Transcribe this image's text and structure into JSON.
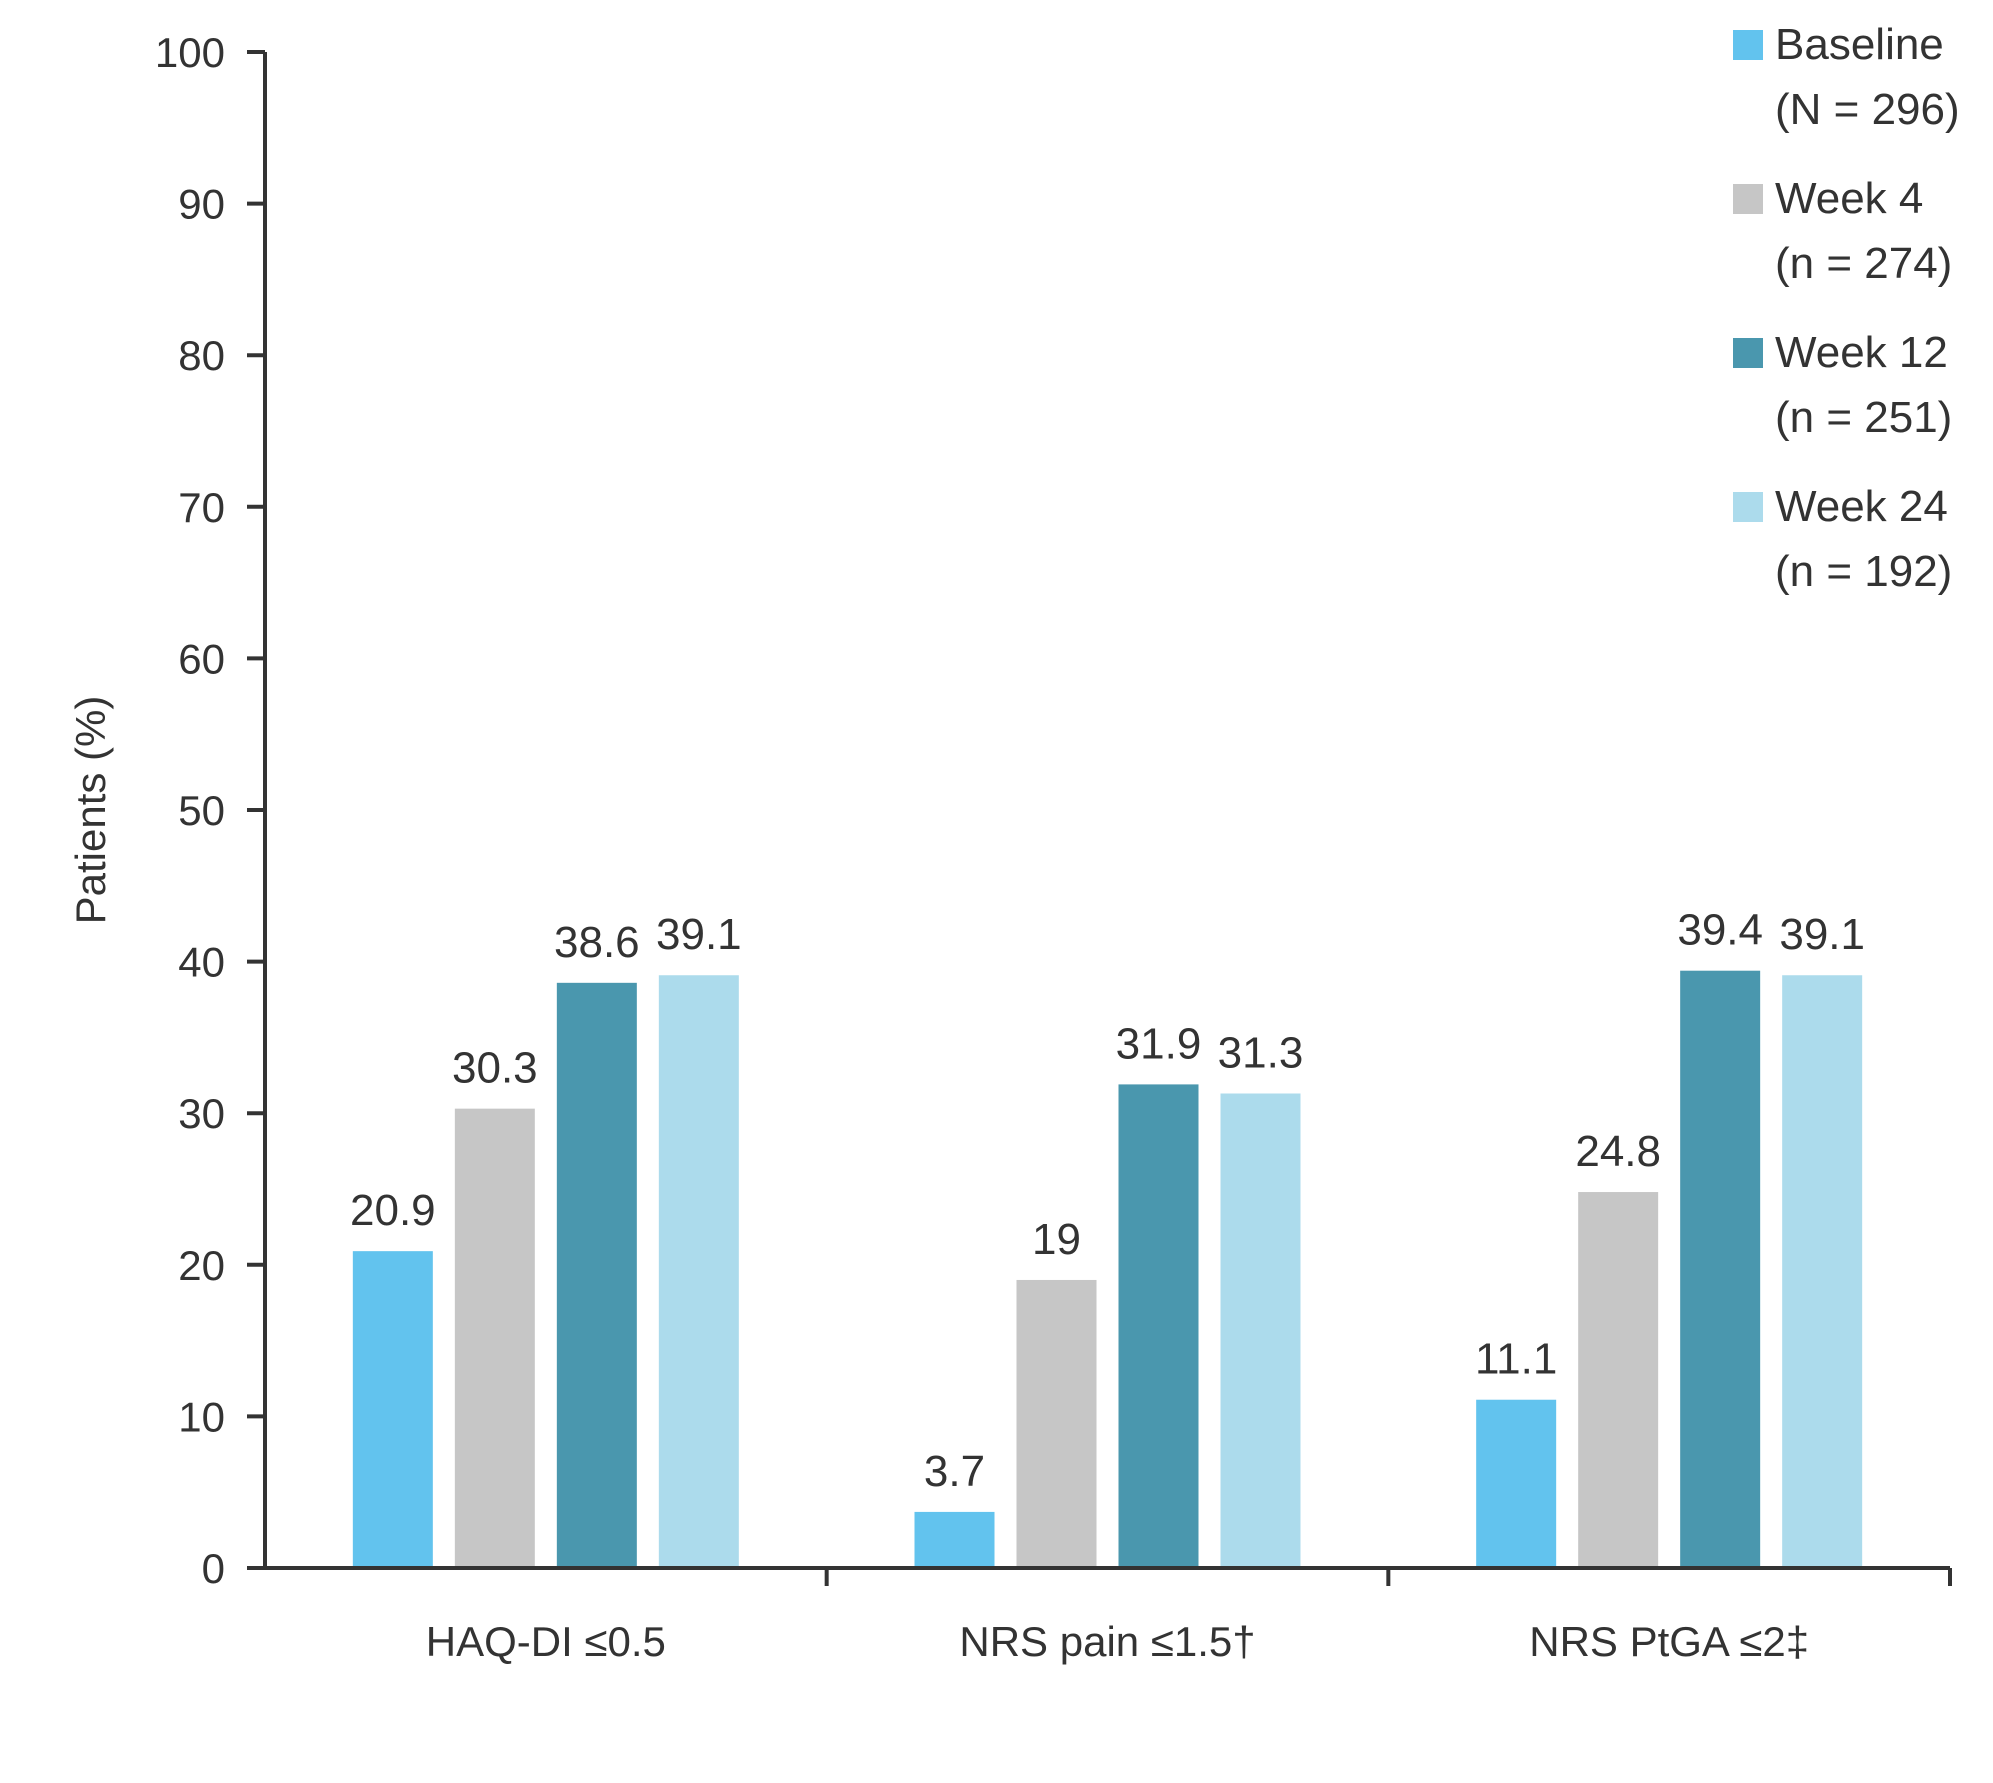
{
  "chart_data": {
    "type": "bar",
    "ylabel": "Patients (%)",
    "xlabel": "",
    "ylim": [
      0,
      100
    ],
    "yticks": [
      0,
      10,
      20,
      30,
      40,
      50,
      60,
      70,
      80,
      90,
      100
    ],
    "categories": [
      "HAQ-DI ≤0.5",
      "NRS pain ≤1.5†",
      "NRS PtGA ≤2‡"
    ],
    "legend_position": "top-right",
    "grid": false,
    "series": [
      {
        "name": "Baseline",
        "name_line2": "(N = 296)",
        "color": "#62c3ee",
        "values": [
          20.9,
          3.7,
          11.1
        ],
        "labels": [
          "20.9",
          "3.7",
          "11.1"
        ]
      },
      {
        "name": "Week 4",
        "name_line2": "(n = 274)",
        "color": "#c6c6c6",
        "values": [
          30.3,
          19,
          24.8
        ],
        "labels": [
          "30.3",
          "19",
          "24.8"
        ]
      },
      {
        "name": "Week 12",
        "name_line2": "(n = 251)",
        "color": "#4a97ae",
        "values": [
          38.6,
          31.9,
          39.4
        ],
        "labels": [
          "38.6",
          "31.9",
          "39.4"
        ]
      },
      {
        "name": "Week 24",
        "name_line2": "(n = 192)",
        "color": "#acdbec",
        "values": [
          39.1,
          31.3,
          39.1
        ],
        "labels": [
          "39.1",
          "31.3",
          "39.1"
        ]
      }
    ]
  }
}
